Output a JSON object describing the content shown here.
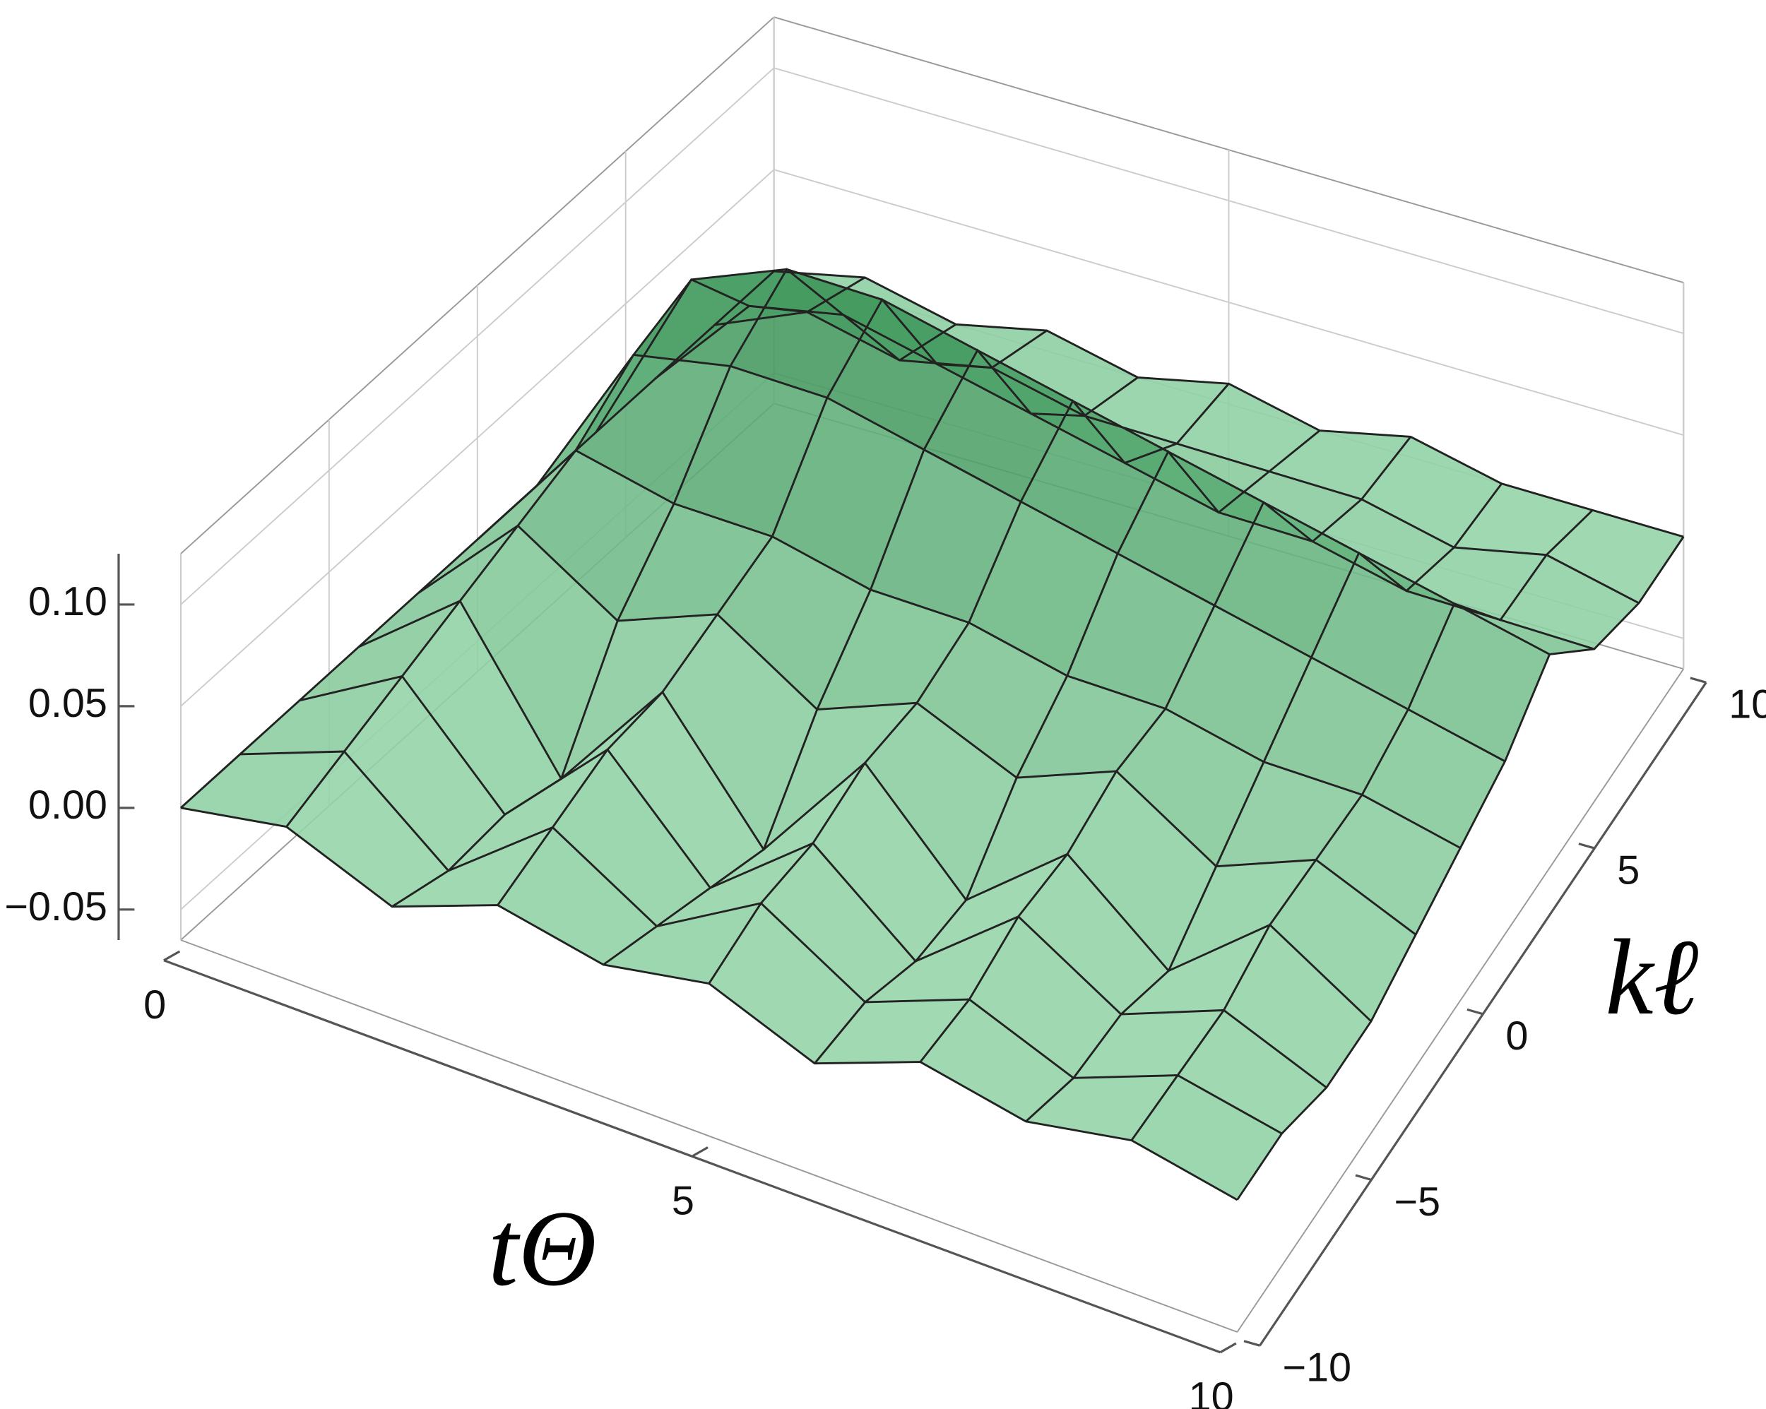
{
  "chart_data": {
    "type": "surface",
    "xlabel": "tΘ",
    "ylabel": "kℓ",
    "x": [
      0,
      1,
      2,
      3,
      4,
      5,
      6,
      7,
      8,
      9,
      10
    ],
    "y": [
      -10,
      -8,
      -6,
      -4,
      -2,
      0,
      2,
      4,
      6,
      8,
      10
    ],
    "z": [
      [
        0,
        0.01,
        -0.01,
        0.01,
        0,
        0.01,
        -0.01,
        0.01,
        0,
        0.01,
        0
      ],
      [
        0,
        0.02,
        -0.02,
        0.02,
        -0.01,
        0.02,
        -0.01,
        0.01,
        -0.01,
        0.01,
        0
      ],
      [
        0,
        0.03,
        -0.02,
        0.03,
        -0.02,
        0.02,
        -0.02,
        0.02,
        -0.01,
        0.01,
        -0.01
      ],
      [
        0,
        0.04,
        -0.03,
        0.03,
        -0.03,
        0.03,
        -0.02,
        0.02,
        -0.02,
        0.02,
        -0.01
      ],
      [
        0,
        0.05,
        0.02,
        0.04,
        0.01,
        0.03,
        0.01,
        0.03,
        0,
        0.02,
        0
      ],
      [
        0,
        0.06,
        0.05,
        0.05,
        0.04,
        0.04,
        0.03,
        0.03,
        0.02,
        0.02,
        0.01
      ],
      [
        0,
        0.08,
        0.09,
        0.09,
        0.08,
        0.07,
        0.06,
        0.05,
        0.04,
        0.03,
        0.02
      ],
      [
        0,
        0.09,
        0.11,
        0.11,
        0.1,
        0.09,
        0.08,
        0.07,
        0.06,
        0.05,
        0.04
      ],
      [
        0,
        0.05,
        0.06,
        0.05,
        0.04,
        0.03,
        0.02,
        0.02,
        0.01,
        0.01,
        0.01
      ],
      [
        0,
        0.02,
        0.01,
        0.02,
        0.01,
        0.01,
        0.01,
        0.01,
        0,
        0.01,
        0
      ],
      [
        0,
        0.01,
        0,
        0.01,
        0,
        0.01,
        0,
        0.01,
        0,
        0,
        0
      ]
    ],
    "xlim": [
      0,
      10
    ],
    "ylim": [
      -10,
      10
    ],
    "zlim": [
      -0.065,
      0.125
    ],
    "xticks": [
      0,
      5,
      10
    ],
    "yticks": [
      {
        "value": -10,
        "label": "−10"
      },
      {
        "value": -5,
        "label": "−5"
      },
      0,
      5,
      10
    ],
    "zticks": [
      {
        "value": -0.05,
        "label": "−0.05"
      },
      {
        "value": 0,
        "label": "0.00"
      },
      {
        "value": 0.05,
        "label": "0.05"
      },
      {
        "value": 0.1,
        "label": "0.10"
      }
    ],
    "colors": [
      "#c8fbd8",
      "#2f8a4c"
    ],
    "mesh_color": "#222222",
    "grid": true
  }
}
